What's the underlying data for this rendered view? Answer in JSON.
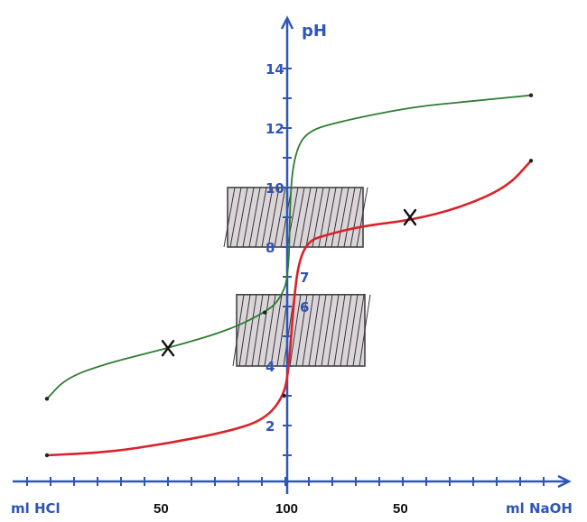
{
  "chart_data": {
    "type": "line",
    "title": "",
    "ylabel": "pH",
    "ylim": [
      0,
      15
    ],
    "yticks": [
      2,
      4,
      6,
      7,
      8,
      10,
      12,
      14
    ],
    "x_bottom_labels": {
      "left_axis_label": "ml HCl",
      "left_mid": "50",
      "center": "100",
      "right_mid": "50",
      "right_axis_label": "ml NaOH"
    },
    "x_description": "volume added (ml): left half HCl 0-100, right half NaOH 0-100 past center",
    "shaded_ranges": [
      {
        "ph_from": 8,
        "ph_to": 10
      },
      {
        "ph_from": 4,
        "ph_to": 6.4
      }
    ],
    "series": [
      {
        "color": "#d9232a",
        "points": [
          [
            0,
            1.0
          ],
          [
            25,
            1.1
          ],
          [
            50,
            1.4
          ],
          [
            75,
            1.8
          ],
          [
            90,
            2.2
          ],
          [
            98,
            3.0
          ],
          [
            100,
            4.0
          ],
          [
            102,
            6.2
          ],
          [
            104,
            7.5
          ],
          [
            108,
            8.2
          ],
          [
            115,
            8.4
          ],
          [
            130,
            8.7
          ],
          [
            150,
            8.9
          ],
          [
            170,
            9.3
          ],
          [
            190,
            10.0
          ],
          [
            200,
            10.9
          ]
        ],
        "marker_label": "X",
        "marker_at": [
          150,
          9.0
        ]
      },
      {
        "color": "#2e7d32",
        "points": [
          [
            0,
            2.9
          ],
          [
            8,
            3.6
          ],
          [
            25,
            4.1
          ],
          [
            50,
            4.6
          ],
          [
            75,
            5.2
          ],
          [
            90,
            5.8
          ],
          [
            96,
            6.2
          ],
          [
            100,
            7.0
          ],
          [
            100.5,
            10.0
          ],
          [
            103,
            11.3
          ],
          [
            108,
            11.9
          ],
          [
            120,
            12.2
          ],
          [
            150,
            12.7
          ],
          [
            175,
            12.9
          ],
          [
            200,
            13.1
          ]
        ],
        "marker_label": "X",
        "marker_at": [
          50,
          4.6
        ]
      }
    ]
  }
}
